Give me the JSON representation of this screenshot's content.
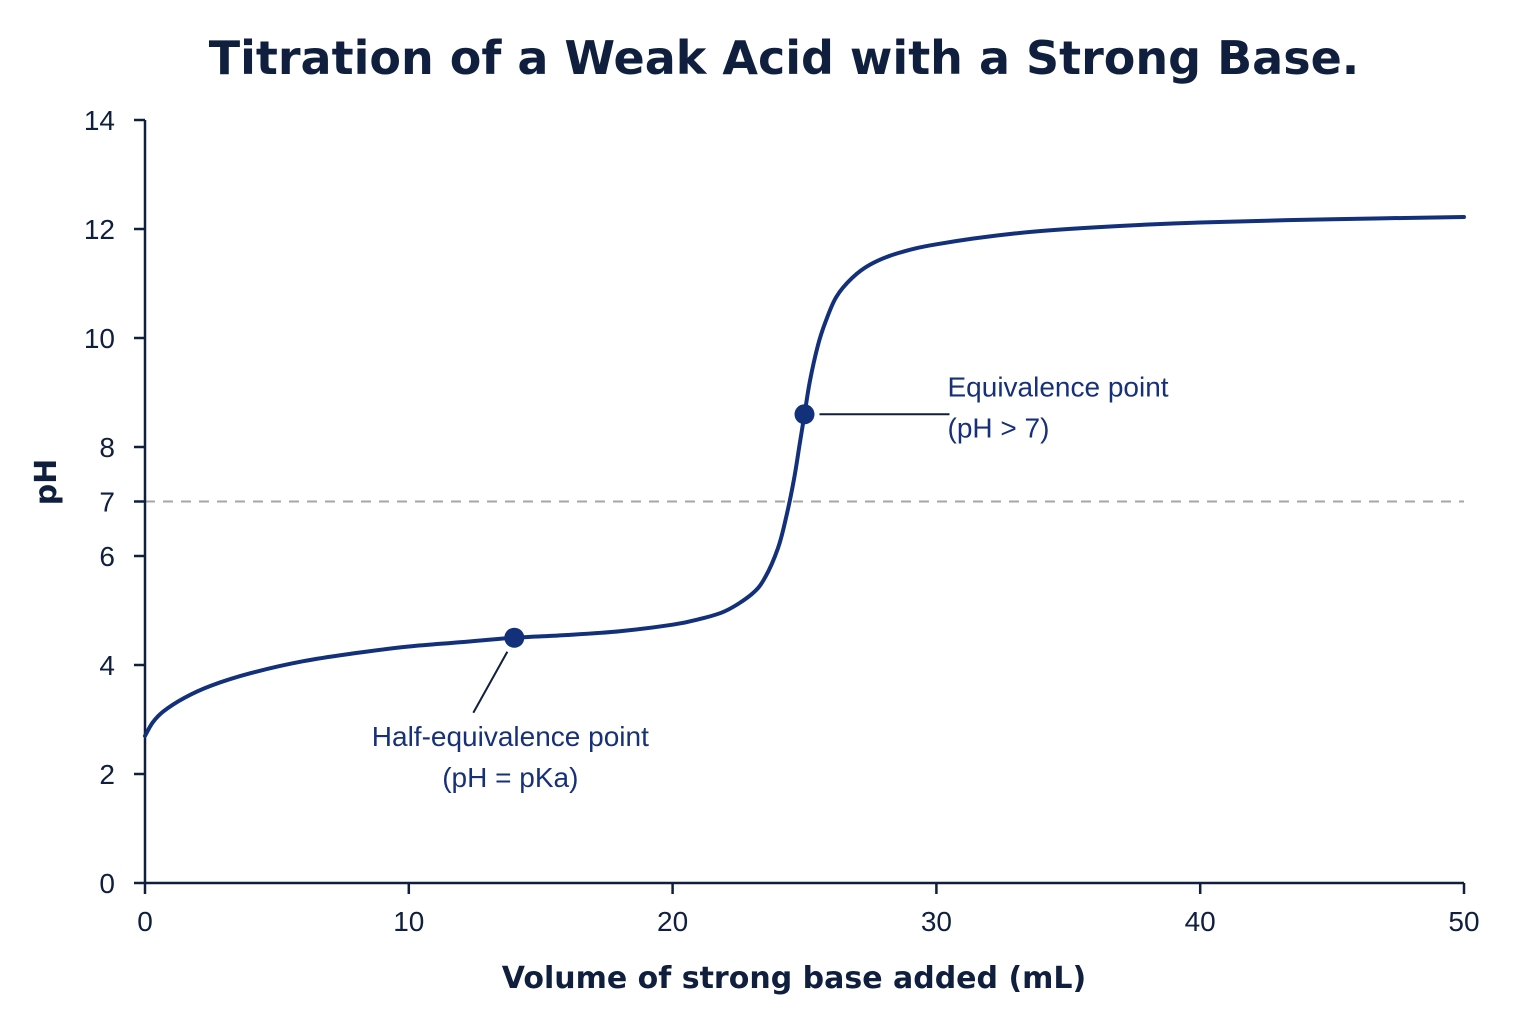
{
  "chart_data": {
    "type": "line",
    "title": "Titration of a Weak Acid with a Strong Base.",
    "xlabel": "Volume of strong base added (mL)",
    "ylabel": "pH",
    "xlim": [
      0,
      50
    ],
    "ylim": [
      0,
      14
    ],
    "x_ticks": [
      0,
      10,
      20,
      30,
      40,
      50
    ],
    "y_ticks": [
      0,
      2,
      4,
      6,
      7,
      8,
      10,
      12,
      14
    ],
    "grid": false,
    "reference_line": {
      "y": 7,
      "style": "dashed",
      "color": "#a6a6a6"
    },
    "series": [
      {
        "color": "#13307a",
        "x": [
          0,
          0.3,
          0.7,
          1.5,
          2.5,
          4,
          6,
          8,
          10,
          12,
          14,
          16,
          18,
          20,
          21,
          22,
          23,
          23.5,
          24,
          24.3,
          24.6,
          24.8,
          25,
          25.2,
          25.5,
          25.8,
          26.2,
          26.8,
          27.5,
          28.5,
          30,
          33,
          36,
          40,
          45,
          50
        ],
        "y": [
          2.7,
          2.95,
          3.15,
          3.4,
          3.62,
          3.85,
          4.07,
          4.22,
          4.34,
          4.42,
          4.5,
          4.55,
          4.62,
          4.74,
          4.84,
          4.99,
          5.3,
          5.6,
          6.15,
          6.7,
          7.4,
          8.0,
          8.6,
          9.2,
          9.85,
          10.3,
          10.75,
          11.1,
          11.35,
          11.55,
          11.72,
          11.92,
          12.03,
          12.12,
          12.18,
          12.22
        ]
      }
    ],
    "annotations": [
      {
        "name": "equivalence-point",
        "point": [
          25,
          8.6
        ],
        "lines": [
          "Equivalence point",
          "(pH > 7)"
        ]
      },
      {
        "name": "half-equivalence-point",
        "point": [
          14,
          4.5
        ],
        "lines": [
          "Half-equivalence point",
          "(pH = pKa)"
        ]
      }
    ]
  }
}
